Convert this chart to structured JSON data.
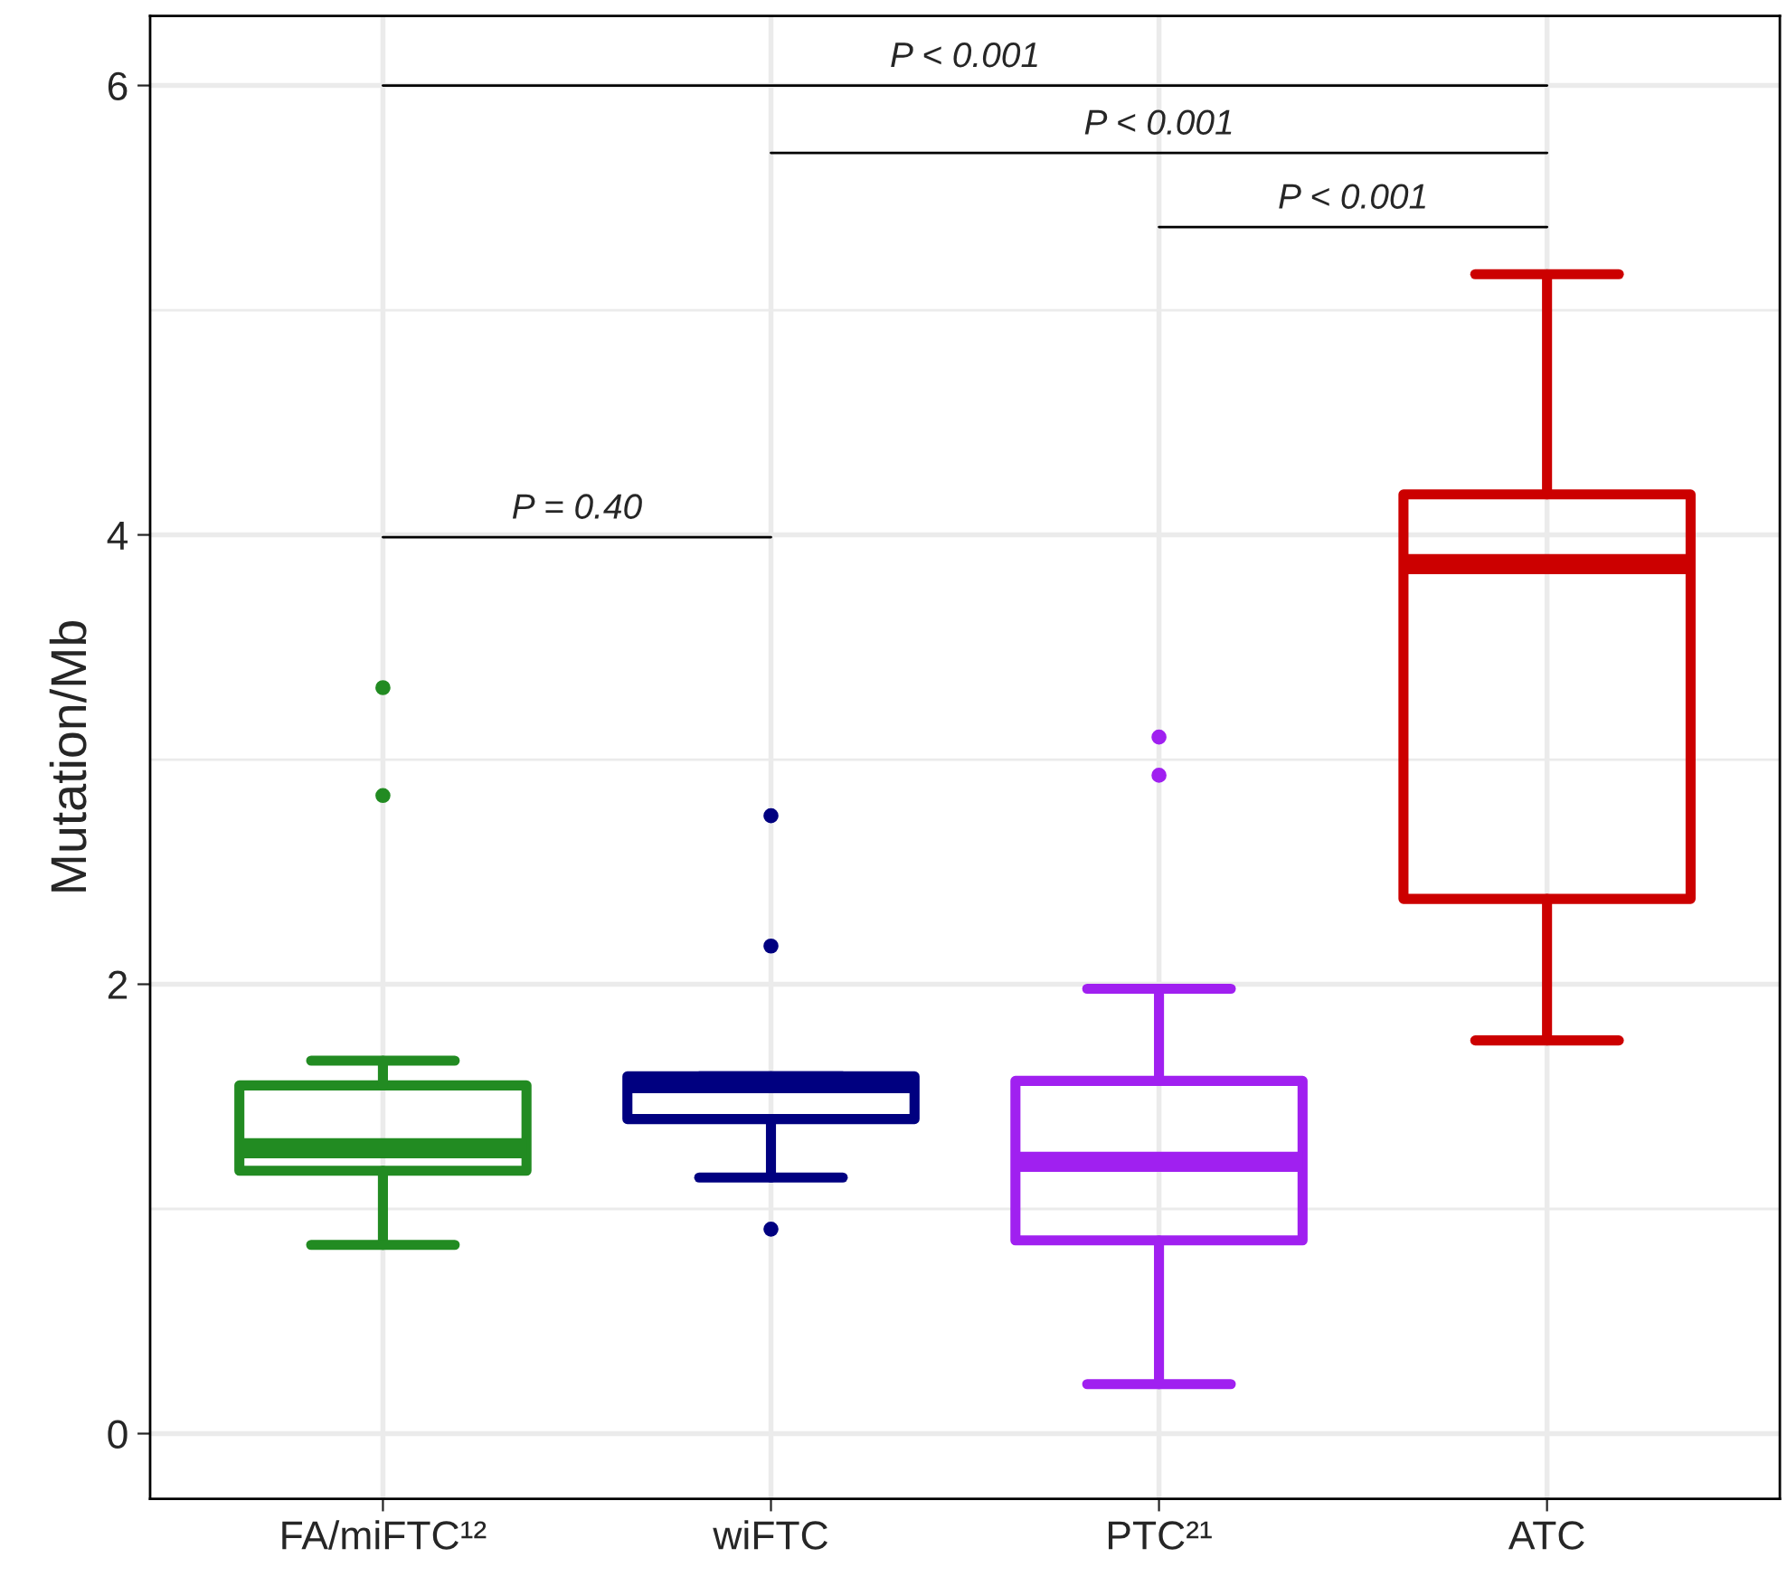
{
  "chart_data": {
    "type": "box",
    "ylabel": "Mutation/Mb",
    "categories": [
      "FA/miFTC¹²",
      "wiFTC",
      "PTC²¹",
      "ATC"
    ],
    "colors": [
      "#228b22",
      "#000080",
      "#a020f0",
      "#cc0000"
    ],
    "boxes": [
      {
        "low": 0.84,
        "q1": 1.17,
        "median": 1.27,
        "q3": 1.55,
        "high": 1.66,
        "outliers": [
          3.32,
          2.84
        ]
      },
      {
        "low": 1.14,
        "q1": 1.4,
        "median": 1.56,
        "q3": 1.59,
        "high": 1.59,
        "outliers": [
          2.75,
          2.17,
          0.91
        ]
      },
      {
        "low": 0.22,
        "q1": 0.86,
        "median": 1.21,
        "q3": 1.57,
        "high": 1.98,
        "outliers": [
          3.1,
          2.93
        ]
      },
      {
        "low": 1.75,
        "q1": 2.38,
        "median": 3.87,
        "q3": 4.18,
        "high": 5.16
      }
    ],
    "ylim": [
      -0.29,
      6.31
    ],
    "yticks": [
      0,
      {
        "value": 1,
        "label": null
      },
      2,
      {
        "value": 3,
        "label": null
      },
      4,
      {
        "value": 5,
        "label": null
      },
      6
    ],
    "grid": true,
    "annotations": [
      "P < 0.001",
      "P < 0.001",
      "P < 0.001",
      "P = 0.40"
    ]
  }
}
